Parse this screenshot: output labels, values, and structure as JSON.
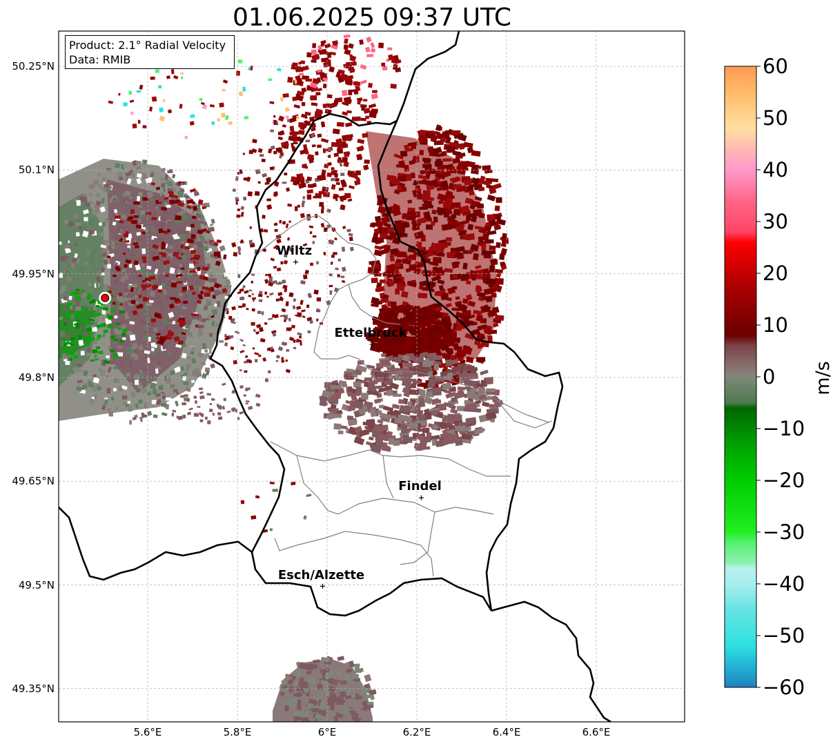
{
  "title": "01.06.2025 09:37 UTC",
  "info": {
    "product": "Product: 2.1° Radial Velocity",
    "data": "Data: RMIB"
  },
  "map": {
    "lon_range": [
      5.4,
      6.8
    ],
    "lat_range": [
      49.3,
      50.3
    ],
    "x_ticks": [
      {
        "value": 5.6,
        "label": "5.6°E"
      },
      {
        "value": 5.8,
        "label": "5.8°E"
      },
      {
        "value": 6.0,
        "label": "6°E"
      },
      {
        "value": 6.2,
        "label": "6.2°E"
      },
      {
        "value": 6.4,
        "label": "6.4°E"
      },
      {
        "value": 6.6,
        "label": "6.6°E"
      }
    ],
    "y_ticks": [
      {
        "value": 50.25,
        "label": "50.25°N"
      },
      {
        "value": 50.1,
        "label": "50.1°N"
      },
      {
        "value": 49.95,
        "label": "49.95°N"
      },
      {
        "value": 49.8,
        "label": "49.8°N"
      },
      {
        "value": 49.65,
        "label": "49.65°N"
      },
      {
        "value": 49.5,
        "label": "49.5°N"
      },
      {
        "value": 49.35,
        "label": "49.35°N"
      }
    ],
    "grid": true,
    "radar_site": {
      "lon": 5.505,
      "lat": 49.915,
      "color": "#e8000b"
    },
    "cities": [
      {
        "name": "Wiltz",
        "lon": 5.93,
        "lat": 49.967
      },
      {
        "name": "Ettelbruck",
        "lon": 6.1,
        "lat": 49.848
      },
      {
        "name": "Findel",
        "lon": 6.21,
        "lat": 49.626
      },
      {
        "name": "Esch/Alzette",
        "lon": 5.99,
        "lat": 49.498
      }
    ],
    "colors": {
      "border": "#000000",
      "canton_border": "#808080",
      "inbound_echo": "#7a0000",
      "near_zero_echo": "#7d5a60",
      "outbound_echo": "#00a000"
    }
  },
  "colorbar": {
    "label": "m/s",
    "vmin": -60,
    "vmax": 60,
    "ticks": [
      {
        "value": 60,
        "label": "60"
      },
      {
        "value": 50,
        "label": "50"
      },
      {
        "value": 40,
        "label": "40"
      },
      {
        "value": 30,
        "label": "30"
      },
      {
        "value": 20,
        "label": "20"
      },
      {
        "value": 10,
        "label": "10"
      },
      {
        "value": 0,
        "label": "0"
      },
      {
        "value": -10,
        "label": "−10"
      },
      {
        "value": -20,
        "label": "−20"
      },
      {
        "value": -30,
        "label": "−30"
      },
      {
        "value": -40,
        "label": "−40"
      },
      {
        "value": -50,
        "label": "−50"
      },
      {
        "value": -60,
        "label": "−60"
      }
    ],
    "stops": [
      {
        "v": -60,
        "c": "#1f7fbf"
      },
      {
        "v": -56,
        "c": "#22b3d4"
      },
      {
        "v": -52,
        "c": "#2ee0e0"
      },
      {
        "v": -45,
        "c": "#66e3e3"
      },
      {
        "v": -40,
        "c": "#a8eeee"
      },
      {
        "v": -37,
        "c": "#b8f0f0"
      },
      {
        "v": -36,
        "c": "#8ef0b0"
      },
      {
        "v": -32,
        "c": "#55f070"
      },
      {
        "v": -30,
        "c": "#22ee22"
      },
      {
        "v": -20,
        "c": "#00cc00"
      },
      {
        "v": -13,
        "c": "#00a000"
      },
      {
        "v": -6,
        "c": "#006600"
      },
      {
        "v": -5,
        "c": "#4f7a4f"
      },
      {
        "v": 0,
        "c": "#7e8878"
      },
      {
        "v": 1,
        "c": "#8a7a78"
      },
      {
        "v": 6,
        "c": "#7a4448"
      },
      {
        "v": 8,
        "c": "#6b0000"
      },
      {
        "v": 18,
        "c": "#b00000"
      },
      {
        "v": 26,
        "c": "#ff0000"
      },
      {
        "v": 28,
        "c": "#ff4466"
      },
      {
        "v": 34,
        "c": "#ff6688"
      },
      {
        "v": 40,
        "c": "#ff99cc"
      },
      {
        "v": 43,
        "c": "#ffb0b8"
      },
      {
        "v": 48,
        "c": "#ffe0a0"
      },
      {
        "v": 54,
        "c": "#ffc070"
      },
      {
        "v": 60,
        "c": "#ff9a50"
      }
    ]
  }
}
